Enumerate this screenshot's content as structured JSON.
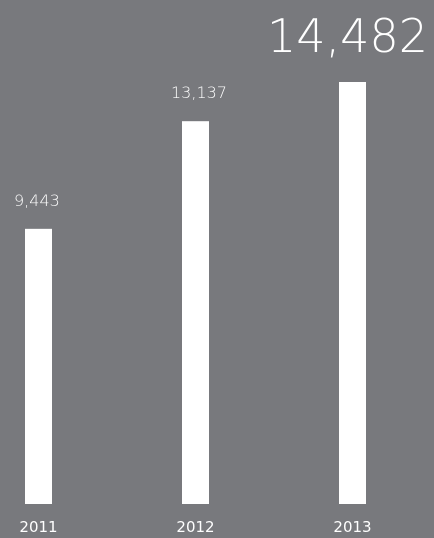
{
  "chart_data": {
    "type": "bar",
    "categories": [
      "2011",
      "2012",
      "2013"
    ],
    "values": [
      9443,
      13137,
      14482
    ],
    "data_labels": [
      "9,443",
      "13,137",
      "14,482"
    ],
    "highlight_index": 2,
    "ylim": [
      0,
      14482
    ],
    "grid": false,
    "colors": {
      "background": "#78797d",
      "bar": "#ffffff",
      "text": "#ffffff"
    }
  }
}
